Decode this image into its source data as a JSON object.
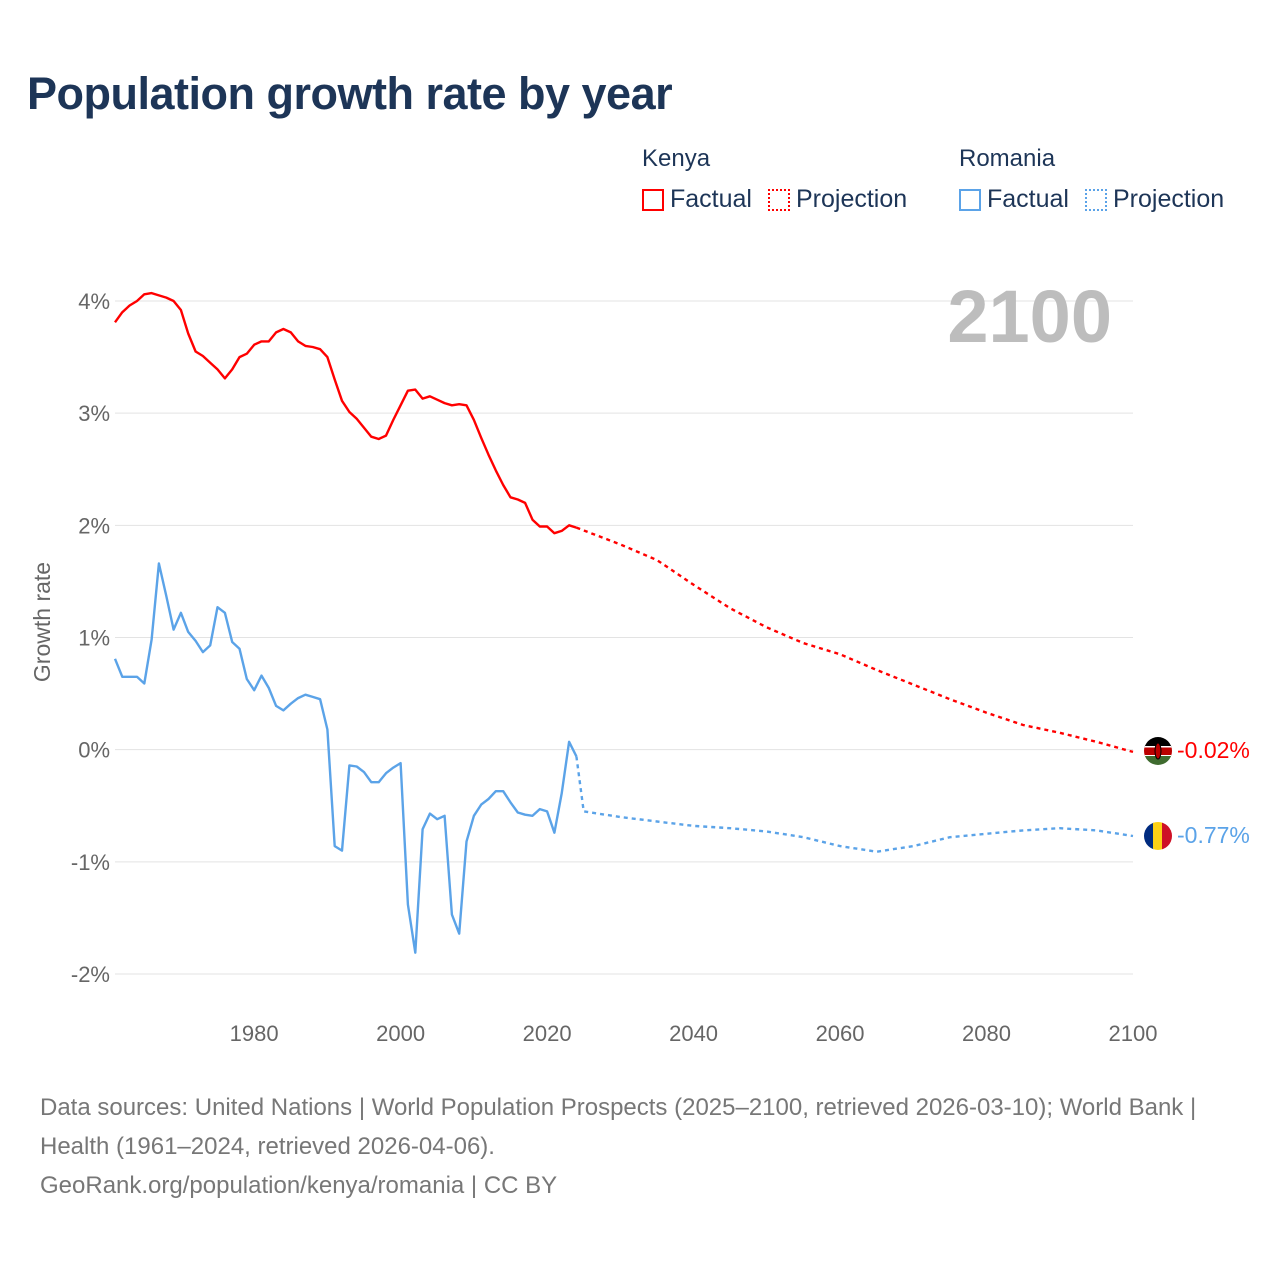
{
  "title": "Population growth rate by year",
  "legend": {
    "groups": [
      {
        "name": "Kenya",
        "factual": "Factual",
        "projection": "Projection",
        "color": "#ff0000"
      },
      {
        "name": "Romania",
        "factual": "Factual",
        "projection": "Projection",
        "color": "#5ba3e8"
      }
    ]
  },
  "current_year_label": "2100",
  "end_labels": {
    "kenya": "-0.02%",
    "romania": "-0.77%"
  },
  "footer": {
    "sources": "Data sources: United Nations | World Population Prospects (2025–2100, retrieved 2026-03-10); World Bank | Health (1961–2024, retrieved 2026-04-06).",
    "link": "GeoRank.org/population/kenya/romania | CC BY"
  },
  "chart_data": {
    "type": "line",
    "title": "Population growth rate by year",
    "xlabel": "",
    "ylabel": "Growth rate",
    "xlim": [
      1961,
      2100
    ],
    "ylim": [
      -2,
      4
    ],
    "x_ticks": [
      "1980",
      "2000",
      "2020",
      "2040",
      "2060",
      "2080",
      "2100"
    ],
    "y_ticks": [
      "4%",
      "3%",
      "2%",
      "1%",
      "0%",
      "-1%",
      "-2%"
    ],
    "grid": true,
    "legend_position": "top-right",
    "series": [
      {
        "name": "Kenya Factual",
        "color": "#ff0000",
        "style": "solid",
        "x": [
          1961,
          1962,
          1963,
          1964,
          1965,
          1966,
          1967,
          1968,
          1969,
          1970,
          1971,
          1972,
          1973,
          1974,
          1975,
          1976,
          1977,
          1978,
          1979,
          1980,
          1981,
          1982,
          1983,
          1984,
          1985,
          1986,
          1987,
          1988,
          1989,
          1990,
          1991,
          1992,
          1993,
          1994,
          1995,
          1996,
          1997,
          1998,
          1999,
          2000,
          2001,
          2002,
          2003,
          2004,
          2005,
          2006,
          2007,
          2008,
          2009,
          2010,
          2011,
          2012,
          2013,
          2014,
          2015,
          2016,
          2017,
          2018,
          2019,
          2020,
          2021,
          2022,
          2023,
          2024
        ],
        "values": [
          3.81,
          3.9,
          3.96,
          4.0,
          4.06,
          4.07,
          4.05,
          4.03,
          4.0,
          3.92,
          3.71,
          3.55,
          3.51,
          3.45,
          3.39,
          3.31,
          3.39,
          3.5,
          3.53,
          3.61,
          3.64,
          3.64,
          3.72,
          3.75,
          3.72,
          3.64,
          3.6,
          3.59,
          3.57,
          3.5,
          3.3,
          3.11,
          3.01,
          2.95,
          2.87,
          2.79,
          2.77,
          2.8,
          2.94,
          3.07,
          3.2,
          3.21,
          3.13,
          3.15,
          3.12,
          3.09,
          3.07,
          3.08,
          3.07,
          2.94,
          2.78,
          2.63,
          2.49,
          2.36,
          2.25,
          2.23,
          2.2,
          2.05,
          1.99,
          1.99,
          1.93,
          1.95,
          2.0,
          1.98
        ]
      },
      {
        "name": "Kenya Projection",
        "color": "#ff0000",
        "style": "dotted",
        "x": [
          2024,
          2030,
          2035,
          2040,
          2045,
          2050,
          2055,
          2060,
          2065,
          2070,
          2075,
          2080,
          2085,
          2090,
          2095,
          2100
        ],
        "values": [
          1.98,
          1.83,
          1.69,
          1.47,
          1.26,
          1.09,
          0.95,
          0.85,
          0.71,
          0.58,
          0.45,
          0.33,
          0.22,
          0.15,
          0.07,
          -0.02
        ]
      },
      {
        "name": "Romania Factual",
        "color": "#5ba3e8",
        "style": "solid",
        "x": [
          1961,
          1962,
          1963,
          1964,
          1965,
          1966,
          1967,
          1968,
          1969,
          1970,
          1971,
          1972,
          1973,
          1974,
          1975,
          1976,
          1977,
          1978,
          1979,
          1980,
          1981,
          1982,
          1983,
          1984,
          1985,
          1986,
          1987,
          1988,
          1989,
          1990,
          1991,
          1992,
          1993,
          1994,
          1995,
          1996,
          1997,
          1998,
          1999,
          2000,
          2001,
          2002,
          2003,
          2004,
          2005,
          2006,
          2007,
          2008,
          2009,
          2010,
          2011,
          2012,
          2013,
          2014,
          2015,
          2016,
          2017,
          2018,
          2019,
          2020,
          2021,
          2022,
          2023,
          2024
        ],
        "values": [
          0.81,
          0.65,
          0.65,
          0.65,
          0.59,
          0.98,
          1.66,
          1.37,
          1.07,
          1.22,
          1.05,
          0.97,
          0.87,
          0.93,
          1.27,
          1.22,
          0.96,
          0.9,
          0.63,
          0.53,
          0.66,
          0.55,
          0.39,
          0.35,
          0.41,
          0.46,
          0.49,
          0.47,
          0.45,
          0.18,
          -0.86,
          -0.9,
          -0.14,
          -0.15,
          -0.2,
          -0.29,
          -0.29,
          -0.21,
          -0.16,
          -0.12,
          -1.38,
          -1.81,
          -0.71,
          -0.57,
          -0.62,
          -0.59,
          -1.47,
          -1.64,
          -0.82,
          -0.59,
          -0.49,
          -0.44,
          -0.37,
          -0.37,
          -0.47,
          -0.56,
          -0.58,
          -0.59,
          -0.53,
          -0.55,
          -0.74,
          -0.39,
          0.07,
          -0.06
        ]
      },
      {
        "name": "Romania Projection",
        "color": "#5ba3e8",
        "style": "dotted",
        "x": [
          2024,
          2025,
          2030,
          2035,
          2040,
          2045,
          2050,
          2055,
          2060,
          2065,
          2070,
          2075,
          2080,
          2085,
          2090,
          2095,
          2100
        ],
        "values": [
          -0.06,
          -0.55,
          -0.6,
          -0.64,
          -0.68,
          -0.7,
          -0.73,
          -0.78,
          -0.86,
          -0.91,
          -0.86,
          -0.78,
          -0.75,
          -0.72,
          -0.7,
          -0.72,
          -0.77
        ]
      }
    ]
  }
}
